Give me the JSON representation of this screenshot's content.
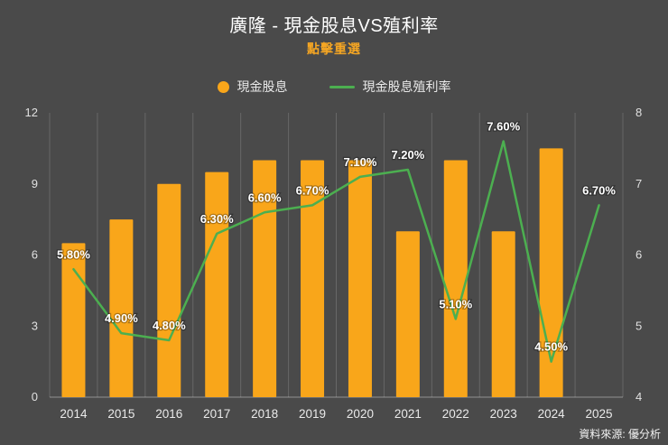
{
  "header": {
    "title": "廣隆 - 現金股息VS殖利率",
    "subtitle": "點擊重選"
  },
  "footer": {
    "source": "資料來源: 優分析"
  },
  "colors": {
    "background": "#4a4a4a",
    "bar": "#f9a61a",
    "line": "#4caf50",
    "title": "#ffffff",
    "subtitle": "#f5a623",
    "label": "#ffffff"
  },
  "chart_data": {
    "type": "bar",
    "subtype": "bar+line dual axis",
    "title": "廣隆 - 現金股息VS殖利率",
    "categories": [
      "2014",
      "2015",
      "2016",
      "2017",
      "2018",
      "2019",
      "2020",
      "2021",
      "2022",
      "2023",
      "2024",
      "2025"
    ],
    "series": [
      {
        "name": "現金股息",
        "type": "bar",
        "axis": "left",
        "color": "#f9a61a",
        "values": [
          6.5,
          7.5,
          9,
          9.5,
          10,
          10,
          10,
          7,
          10,
          7,
          10.5,
          null
        ]
      },
      {
        "name": "現金股息殖利率",
        "type": "line",
        "axis": "right",
        "color": "#4caf50",
        "values": [
          5.8,
          4.9,
          4.8,
          6.3,
          6.6,
          6.7,
          7.1,
          7.2,
          5.1,
          7.6,
          4.5,
          6.7
        ],
        "labels": [
          "5.80%",
          "4.90%",
          "4.80%",
          "6.30%",
          "6.60%",
          "6.70%",
          "7.10%",
          "7.20%",
          "5.10%",
          "7.60%",
          "4.50%",
          "6.70%"
        ]
      }
    ],
    "left_axis": {
      "ticks": [
        0,
        3,
        6,
        9,
        12
      ],
      "range": [
        0,
        12
      ]
    },
    "right_axis": {
      "ticks": [
        4,
        5,
        6,
        7,
        8
      ],
      "range": [
        4,
        8
      ]
    },
    "grid": "vertical-only",
    "legend_position": "top-center"
  }
}
